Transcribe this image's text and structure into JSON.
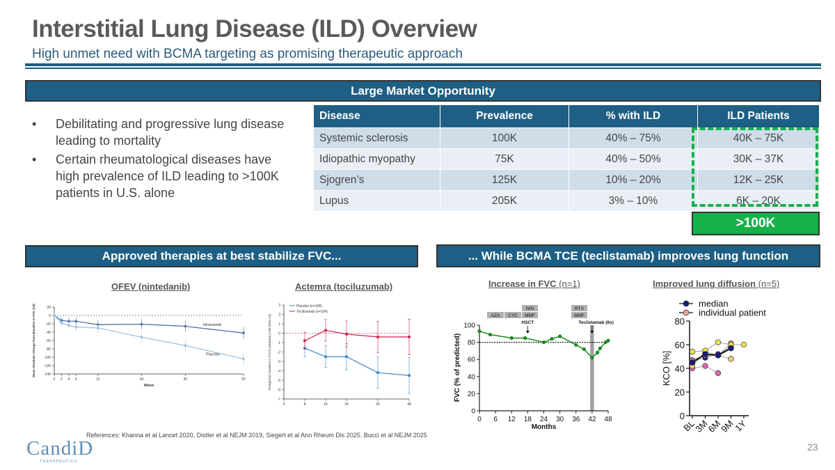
{
  "header": {
    "title": "Interstitial Lung Disease (ILD) Overview",
    "subtitle": "High unmet need with BCMA targeting as promising therapeutic approach"
  },
  "market": {
    "banner": "Large Market Opportunity",
    "bullets": [
      "Debilitating and progressive lung disease leading to mortality",
      "Certain rheumatological diseases have high prevalence of ILD leading to >100K patients in U.S. alone"
    ],
    "table": {
      "headers": [
        "Disease",
        "Prevalence",
        "% with ILD",
        "ILD Patients"
      ],
      "rows": [
        [
          "Systemic sclerosis",
          "100K",
          "40% – 75%",
          "40K – 75K"
        ],
        [
          "Idiopathic myopathy",
          "75K",
          "40% – 50%",
          "30K – 37K"
        ],
        [
          "Sjogren’s",
          "125K",
          "10% – 20%",
          "12K – 25K"
        ],
        [
          "Lupus",
          "205K",
          "3% – 10%",
          "6K – 20K"
        ]
      ]
    },
    "total": ">100K",
    "total_color": "#18b04b"
  },
  "left_panel": {
    "banner": "Approved therapies at best stabilize FVC..."
  },
  "right_panel": {
    "banner": "... While BCMA TCE (teclistamab) improves lung function"
  },
  "chart_data": [
    {
      "type": "line",
      "title": "OFEV (nintedanib)",
      "xlabel": "Week",
      "ylabel": "Mean Absolute Change from Baseline in FVC (ml)",
      "x": [
        0,
        2,
        4,
        6,
        12,
        24,
        36,
        52
      ],
      "xticks": [
        0,
        2,
        4,
        6,
        12,
        24,
        36,
        52
      ],
      "yticks": [
        20,
        0,
        -20,
        -40,
        -60,
        -80,
        -100,
        -120,
        -140
      ],
      "ylim": [
        -140,
        20
      ],
      "series": [
        {
          "name": "Nintedanib",
          "values": [
            0,
            -12,
            -14,
            -14,
            -22,
            -21,
            -26,
            -42
          ],
          "color": "#4b74a8"
        },
        {
          "name": "Placebo",
          "values": [
            0,
            -18,
            -24,
            -28,
            -30,
            -52,
            -72,
            -104
          ],
          "color": "#9ec1dd"
        }
      ]
    },
    {
      "type": "line",
      "title": "Actemra (tociluzumab)",
      "xlabel": "",
      "ylabel": "Change from baseline in FVC% predicted (LSM (95% CI))",
      "x": [
        8,
        16,
        24,
        36,
        48
      ],
      "xticks": [
        0,
        8,
        16,
        24,
        36,
        48
      ],
      "yticks": [
        3,
        2,
        1,
        0,
        -1,
        -2,
        -3,
        -4,
        -5,
        -6,
        -7
      ],
      "ylim": [
        -7,
        3
      ],
      "series": [
        {
          "name": "Placebo (n=106)",
          "values": [
            -1.6,
            -2.5,
            -2.5,
            -4.2,
            -4.5
          ],
          "color": "#3e86c6"
        },
        {
          "name": "Tocilizumab (n=104)",
          "values": [
            -0.8,
            0.3,
            -0.1,
            -0.4,
            -0.4
          ],
          "color": "#c9244e"
        }
      ]
    },
    {
      "type": "line",
      "title": "Increase in FVC",
      "title_note": "(n=1)",
      "xlabel": "Months",
      "ylabel": "FVC (% of predicted)",
      "xticks": [
        0,
        6,
        12,
        18,
        24,
        30,
        36,
        42,
        48
      ],
      "yticks": [
        0,
        20,
        40,
        60,
        80,
        100
      ],
      "ylim": [
        0,
        100
      ],
      "x": [
        0,
        4,
        12,
        17,
        24,
        27,
        30,
        36,
        39,
        42,
        44,
        45,
        47,
        48
      ],
      "values": [
        93,
        89,
        85,
        85,
        80,
        84,
        87,
        77,
        72,
        62,
        68,
        73,
        80,
        82
      ],
      "reference_line": 80,
      "treatments": [
        "AZA",
        "CYC",
        "MMF",
        "NIN",
        "MMF",
        "RTX"
      ],
      "annotations": [
        "HSCT",
        "Teclistamab (6x)"
      ],
      "color": "#1a8a1a"
    },
    {
      "type": "line",
      "title": "Improved lung diffusion",
      "title_note": "(n=5)",
      "xlabel": "",
      "ylabel": "KCO [%]",
      "categories": [
        "BL",
        "3M",
        "6M",
        "9M",
        "1Y"
      ],
      "yticks": [
        0,
        20,
        40,
        60,
        80
      ],
      "ylim": [
        0,
        80
      ],
      "legend": [
        "median",
        "individual patient"
      ],
      "series": [
        {
          "name": "median",
          "values": [
            45,
            52,
            51,
            57,
            null
          ],
          "color": "#1a1a80"
        },
        {
          "name": "patient 1",
          "values": [
            54,
            55,
            62,
            60,
            60
          ],
          "color": "#f3e24a"
        },
        {
          "name": "patient 2",
          "values": [
            42,
            54,
            51,
            48,
            null
          ],
          "color": "#f2d16b"
        },
        {
          "name": "patient 3",
          "values": [
            47,
            51,
            51,
            61,
            null
          ],
          "color": "#d96ab8"
        },
        {
          "name": "patient 4",
          "values": [
            40,
            42,
            36,
            null,
            null
          ],
          "color": "#d96ab8"
        },
        {
          "name": "patient 5",
          "values": [
            46,
            49,
            52,
            58,
            null
          ],
          "color": "#1a1a80"
        }
      ]
    }
  ],
  "footer": {
    "references": "References: Khanna et al Lancet 2020, Distler et al NEJM 2019, Siegert et al Ann Rheum Dis 2025. Bucci et al NEJM 2025",
    "page": "23",
    "logo": "CandiD",
    "logo_sub": "THERAPEUTICS"
  }
}
